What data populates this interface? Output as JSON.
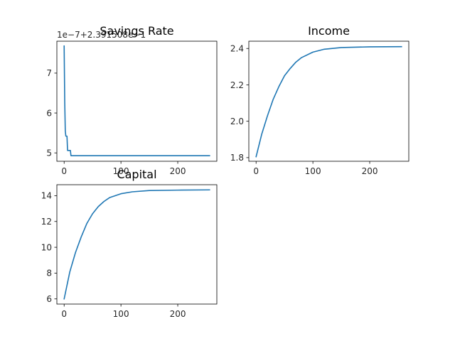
{
  "chart_data": [
    {
      "type": "line",
      "title": "Savings Rate",
      "offset_text": "1e−7+2.391508e−1",
      "xlabel": "",
      "ylabel": "",
      "xlim": [
        -12.8,
        268.8
      ],
      "ylim": [
        4.79,
        7.8
      ],
      "xticks": [
        0,
        100,
        200
      ],
      "yticks": [
        5,
        6,
        7
      ],
      "grid": false,
      "color": "#1f77b4",
      "points": [
        [
          0,
          7.68
        ],
        [
          1,
          6.3
        ],
        [
          2,
          5.55
        ],
        [
          3,
          5.42
        ],
        [
          5,
          5.42
        ],
        [
          6,
          5.06
        ],
        [
          11,
          5.06
        ],
        [
          12,
          4.93
        ],
        [
          256,
          4.93
        ]
      ]
    },
    {
      "type": "line",
      "title": "Income",
      "xlabel": "",
      "ylabel": "",
      "xlim": [
        -12.8,
        268.8
      ],
      "ylim": [
        1.78,
        2.44
      ],
      "xticks": [
        0,
        100,
        200
      ],
      "yticks": [
        1.8,
        2.0,
        2.2,
        2.4
      ],
      "grid": false,
      "color": "#1f77b4",
      "points": [
        [
          0,
          1.805
        ],
        [
          10,
          1.93
        ],
        [
          20,
          2.03
        ],
        [
          30,
          2.12
        ],
        [
          40,
          2.19
        ],
        [
          50,
          2.25
        ],
        [
          60,
          2.29
        ],
        [
          70,
          2.325
        ],
        [
          80,
          2.35
        ],
        [
          100,
          2.38
        ],
        [
          120,
          2.396
        ],
        [
          150,
          2.405
        ],
        [
          200,
          2.409
        ],
        [
          256,
          2.41
        ]
      ]
    },
    {
      "type": "line",
      "title": "Capital",
      "xlabel": "",
      "ylabel": "",
      "xlim": [
        -12.8,
        268.8
      ],
      "ylim": [
        5.6,
        14.85
      ],
      "xticks": [
        0,
        100,
        200
      ],
      "yticks": [
        6,
        8,
        10,
        12,
        14
      ],
      "grid": false,
      "color": "#1f77b4",
      "points": [
        [
          0,
          6.0
        ],
        [
          10,
          8.1
        ],
        [
          20,
          9.6
        ],
        [
          30,
          10.8
        ],
        [
          40,
          11.85
        ],
        [
          50,
          12.6
        ],
        [
          60,
          13.15
        ],
        [
          70,
          13.55
        ],
        [
          80,
          13.85
        ],
        [
          100,
          14.15
        ],
        [
          120,
          14.3
        ],
        [
          150,
          14.4
        ],
        [
          200,
          14.43
        ],
        [
          256,
          14.45
        ]
      ]
    }
  ]
}
